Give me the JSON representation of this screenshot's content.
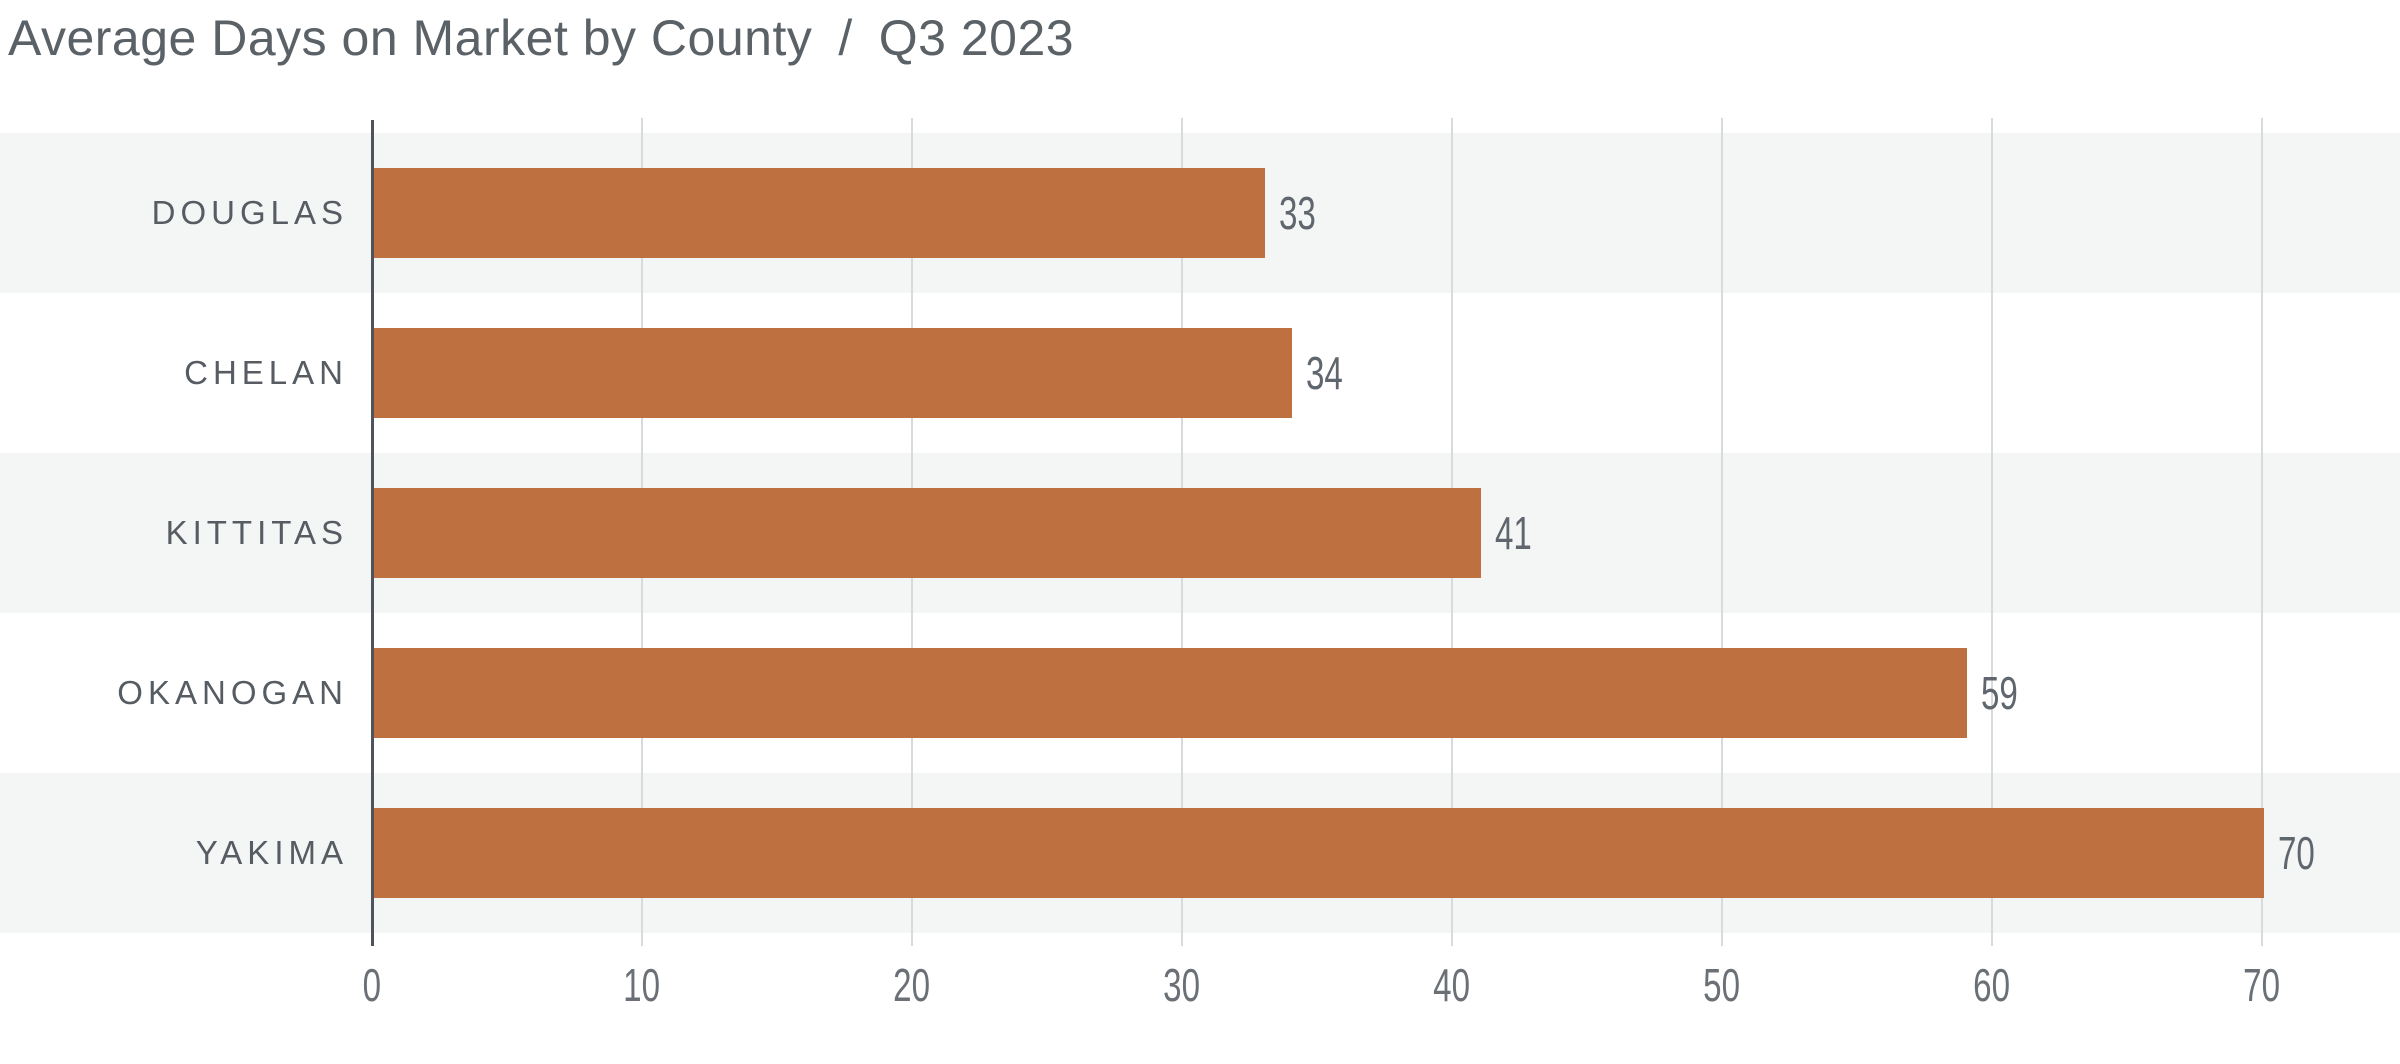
{
  "header": {
    "title": "Average Days on Market by County",
    "separator": "/",
    "period": "Q3 2023"
  },
  "chart_data": {
    "type": "bar",
    "orientation": "horizontal",
    "title": "Average Days on Market by County / Q3 2023",
    "categories": [
      "DOUGLAS",
      "CHELAN",
      "KITTITAS",
      "OKANOGAN",
      "YAKIMA"
    ],
    "values": [
      33,
      34,
      41,
      59,
      70
    ],
    "value_labels": [
      33,
      34,
      41,
      59,
      70
    ],
    "xlabel": "",
    "ylabel": "",
    "xlim": [
      0,
      75
    ],
    "xticks": [
      0,
      10,
      20,
      30,
      40,
      50,
      60,
      70
    ],
    "grid": true,
    "legend": false
  },
  "colors": {
    "bar": "#bf7040",
    "row_band_odd": "#f4f5f5",
    "row_band_even": "#ffffff",
    "axis_line": "#4e545a",
    "gridline": "#d9dadb",
    "title_text": "#5a6167",
    "category_text": "#565c62",
    "value_text": "#5f666d",
    "tick_text": "#6a7076"
  }
}
